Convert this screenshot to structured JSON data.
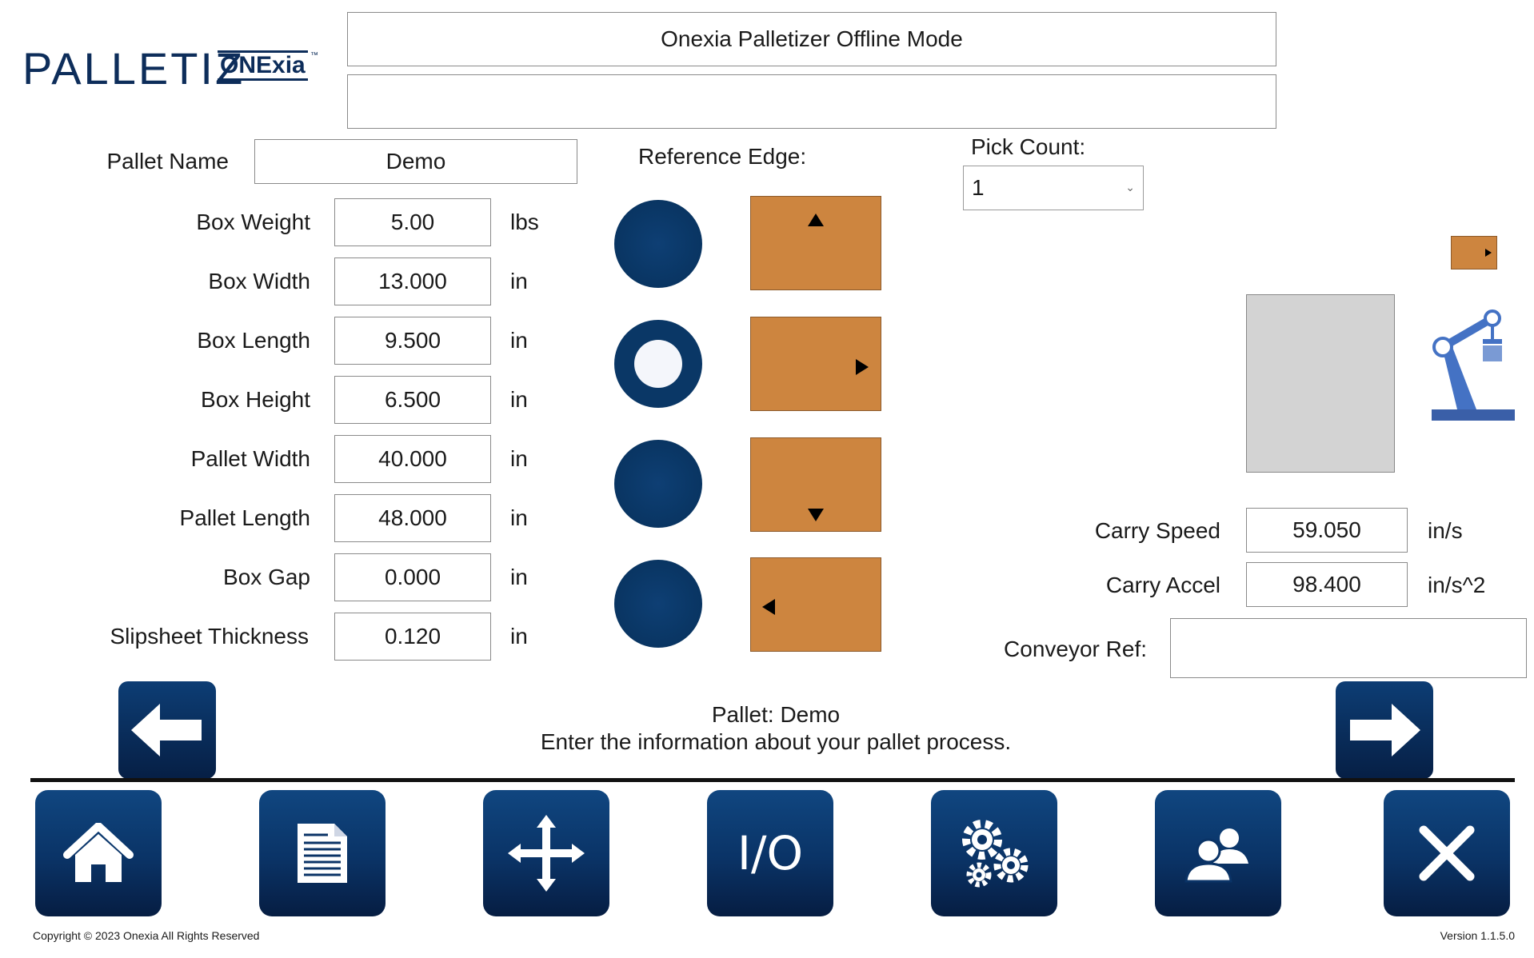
{
  "logo": {
    "main": "PALLETIZ",
    "sub": "ONExia",
    "tm": "™"
  },
  "header": {
    "title": "Onexia Palletizer Offline Mode",
    "message": ""
  },
  "form": {
    "pallet_name_label": "Pallet Name",
    "pallet_name_value": "Demo",
    "rows": [
      {
        "label": "Box Weight",
        "value": "5.00",
        "unit": "lbs"
      },
      {
        "label": "Box Width",
        "value": "13.000",
        "unit": "in"
      },
      {
        "label": "Box Length",
        "value": "9.500",
        "unit": "in"
      },
      {
        "label": "Box Height",
        "value": "6.500",
        "unit": "in"
      },
      {
        "label": "Pallet Width",
        "value": "40.000",
        "unit": "in"
      },
      {
        "label": "Pallet Length",
        "value": "48.000",
        "unit": "in"
      },
      {
        "label": "Box Gap",
        "value": "0.000",
        "unit": "in"
      },
      {
        "label": "Slipsheet Thickness",
        "value": "0.120",
        "unit": "in"
      }
    ]
  },
  "reference_edge": {
    "label": "Reference Edge:",
    "options": [
      {
        "icon": "arrow-up-icon",
        "selected": false
      },
      {
        "icon": "arrow-right-icon",
        "selected": true
      },
      {
        "icon": "arrow-down-icon",
        "selected": false
      },
      {
        "icon": "arrow-left-icon",
        "selected": false
      }
    ],
    "box_color": "#cd853f"
  },
  "pick_count": {
    "label": "Pick Count:",
    "value": "1"
  },
  "motion": {
    "carry_speed_label": "Carry Speed",
    "carry_speed_value": "59.050",
    "carry_speed_unit": "in/s",
    "carry_accel_label": "Carry Accel",
    "carry_accel_value": "98.400",
    "carry_accel_unit": "in/s^2",
    "conveyor_ref_label": "Conveyor Ref:",
    "conveyor_ref_value": ""
  },
  "status": {
    "line1": "Pallet: Demo",
    "line2": "Enter the information about your pallet process."
  },
  "nav_icons": [
    "back-arrow-icon",
    "forward-arrow-icon"
  ],
  "toolbar": [
    "home-icon",
    "document-icon",
    "move-icon",
    "io-icon",
    "gears-icon",
    "users-icon",
    "close-icon"
  ],
  "toolbar_io_label": "I/O",
  "footer": {
    "copyright": "Copyright © 2023 Onexia All Rights Reserved",
    "version": "Version 1.1.5.0"
  },
  "colors": {
    "navy": "#0a3766",
    "box": "#cd853f",
    "robot": "#4472c4",
    "pallet": "#d3d3d3"
  }
}
